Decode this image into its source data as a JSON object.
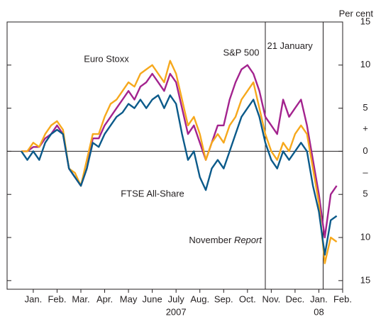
{
  "chart_data": {
    "type": "line",
    "y_unit_label": "Per cent",
    "sign_labels": [
      "+",
      "–"
    ],
    "xlim": [
      -0.6,
      13.5
    ],
    "ylim": [
      -16,
      15
    ],
    "xticks": [
      {
        "value": 0.5,
        "label": "Jan."
      },
      {
        "value": 1.5,
        "label": "Feb."
      },
      {
        "value": 2.5,
        "label": "Mar."
      },
      {
        "value": 3.5,
        "label": "Apr."
      },
      {
        "value": 4.5,
        "label": "May"
      },
      {
        "value": 5.5,
        "label": "June"
      },
      {
        "value": 6.5,
        "label": "July"
      },
      {
        "value": 7.5,
        "label": "Aug."
      },
      {
        "value": 8.5,
        "label": "Sep."
      },
      {
        "value": 9.5,
        "label": "Oct."
      },
      {
        "value": 10.5,
        "label": "Nov."
      },
      {
        "value": 11.5,
        "label": "Dec."
      },
      {
        "value": 12.5,
        "label": "Jan."
      },
      {
        "value": 13.5,
        "label": "Feb."
      }
    ],
    "year_ticks": [
      {
        "value": 6.5,
        "label": "2007"
      },
      {
        "value": 12.5,
        "label": "08"
      }
    ],
    "yticks": [
      15,
      10,
      5,
      0,
      {
        "value": -5,
        "label": "5"
      },
      {
        "value": -10,
        "label": "10"
      },
      {
        "value": -15,
        "label": "15"
      }
    ],
    "vlines": [
      {
        "x": 10.25,
        "label_parts": [
          "November ",
          "Report"
        ]
      },
      {
        "x": 12.68,
        "label_parts": [
          "21 January"
        ]
      }
    ],
    "x": [
      0,
      0.25,
      0.5,
      0.75,
      1,
      1.25,
      1.5,
      1.75,
      2,
      2.25,
      2.5,
      2.75,
      3,
      3.25,
      3.5,
      3.75,
      4,
      4.25,
      4.5,
      4.75,
      5,
      5.25,
      5.5,
      5.75,
      6,
      6.25,
      6.5,
      6.75,
      7,
      7.25,
      7.5,
      7.75,
      8,
      8.25,
      8.5,
      8.75,
      9,
      9.25,
      9.5,
      9.75,
      10,
      10.25,
      10.5,
      10.75,
      11,
      11.25,
      11.5,
      11.75,
      12,
      12.25,
      12.5,
      12.75,
      13,
      13.25
    ],
    "series": [
      {
        "name": "S&P 500",
        "color": "#a3238e",
        "values": [
          0,
          0,
          0.5,
          0.5,
          1.5,
          2,
          3,
          2,
          -2,
          -3,
          -4,
          -2,
          1.5,
          1.5,
          3,
          4,
          5,
          6,
          7,
          6,
          7.5,
          8,
          9,
          8,
          7,
          9,
          8,
          5,
          2,
          3,
          1,
          -1,
          1,
          3,
          3,
          6,
          8,
          9.5,
          10,
          9,
          7,
          4,
          3,
          2,
          6,
          4,
          5,
          6,
          3,
          -1,
          -5,
          -10,
          -5,
          -4
        ]
      },
      {
        "name": "Euro Stoxx",
        "color": "#f6a81c",
        "values": [
          0,
          0,
          1,
          0.5,
          2,
          3,
          3.5,
          2.5,
          -2,
          -2.5,
          -4,
          -1,
          2,
          2,
          4,
          5.5,
          6,
          7,
          8,
          7.5,
          9,
          9.5,
          10,
          9,
          8,
          10.5,
          9,
          6,
          3,
          4,
          2,
          -1,
          1,
          2,
          1,
          3,
          4,
          6,
          7,
          8,
          5,
          2,
          0,
          -1,
          1,
          0,
          2,
          3,
          2,
          -2,
          -6,
          -13,
          -10,
          -10.5
        ]
      },
      {
        "name": "FTSE All-Share",
        "color": "#0b5a8a",
        "values": [
          0,
          -1,
          0,
          -1,
          1,
          2,
          2.5,
          2,
          -2,
          -3,
          -4,
          -2,
          1,
          0.5,
          2,
          3,
          4,
          4.5,
          5.5,
          5,
          6,
          5,
          6,
          6.5,
          5,
          6.5,
          5.5,
          2,
          -1,
          0,
          -3,
          -4.5,
          -2,
          -1,
          -2,
          0,
          2,
          4,
          5,
          6,
          4,
          1,
          -1,
          -2,
          0,
          -1,
          0,
          1,
          0,
          -4,
          -7,
          -12,
          -8,
          -7.5
        ]
      }
    ]
  }
}
